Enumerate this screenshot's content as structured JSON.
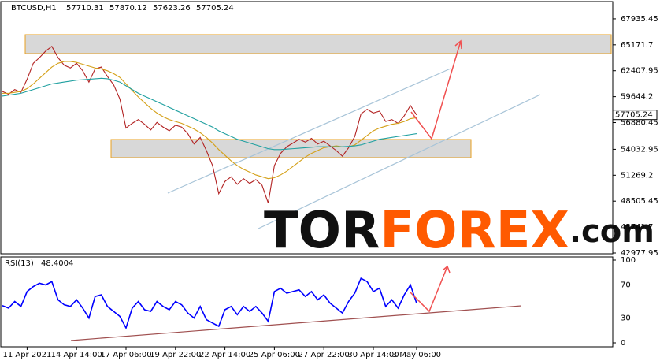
{
  "header": {
    "symbol": "BTCUSD,H1",
    "ohlc": [
      57710.31,
      57870.12,
      57623.26,
      57705.24
    ]
  },
  "current_price": 57705.24,
  "watermark": {
    "part1": "TOR",
    "part2": "FOREX",
    "part3": ".com"
  },
  "rsi_header": {
    "label": "RSI(13)",
    "value": 48.4004
  },
  "chart_data": [
    {
      "type": "line",
      "ylim": [
        42894,
        69778
      ],
      "yticks": [
        67935.45,
        65171.7,
        62407.95,
        59644.2,
        56880.45,
        54032.95,
        51269.2,
        48505.45,
        45741.7,
        42977.95
      ],
      "series": [
        {
          "color": "#b22222",
          "values": [
            60200,
            59900,
            60400,
            60100,
            61500,
            63200,
            63800,
            64500,
            65000,
            63800,
            63000,
            62700,
            63200,
            62400,
            61200,
            62600,
            62800,
            61800,
            60900,
            59400,
            56300,
            56800,
            57200,
            56700,
            56100,
            56900,
            56400,
            56000,
            56600,
            56400,
            55700,
            54600,
            55300,
            53900,
            52300,
            49300,
            50600,
            51100,
            50300,
            50900,
            50400,
            50800,
            50200,
            48300,
            52300,
            53600,
            54300,
            54700,
            55100,
            54800,
            55200,
            54600,
            54900,
            54400,
            53900,
            53300,
            54200,
            55400,
            57800,
            58300,
            57900,
            58100,
            57000,
            57200,
            56800,
            57600,
            58700,
            57700
          ]
        },
        {
          "color": "#d4a017",
          "values": [
            60000,
            60000,
            60100,
            60200,
            60500,
            61000,
            61600,
            62200,
            62800,
            63200,
            63400,
            63400,
            63300,
            63100,
            62900,
            62700,
            62600,
            62400,
            62100,
            61700,
            61000,
            60300,
            59600,
            59000,
            58400,
            57900,
            57500,
            57200,
            57000,
            56800,
            56500,
            56200,
            55800,
            55300,
            54700,
            54000,
            53400,
            52800,
            52300,
            51900,
            51600,
            51300,
            51100,
            50900,
            51000,
            51300,
            51700,
            52200,
            52700,
            53200,
            53600,
            53900,
            54200,
            54300,
            54400,
            54300,
            54300,
            54500,
            55000,
            55500,
            56000,
            56300,
            56500,
            56700,
            56800,
            57000,
            57300,
            57400
          ]
        },
        {
          "color": "#20a0a0",
          "values": [
            59700,
            59800,
            59900,
            60000,
            60200,
            60400,
            60600,
            60800,
            61000,
            61100,
            61200,
            61300,
            61400,
            61450,
            61500,
            61550,
            61600,
            61550,
            61400,
            61200,
            60800,
            60400,
            60000,
            59700,
            59400,
            59100,
            58800,
            58500,
            58200,
            57900,
            57600,
            57300,
            57000,
            56700,
            56400,
            56000,
            55700,
            55400,
            55100,
            54900,
            54700,
            54500,
            54300,
            54100,
            54000,
            54000,
            54050,
            54100,
            54150,
            54200,
            54250,
            54300,
            54300,
            54300,
            54300,
            54300,
            54350,
            54400,
            54500,
            54700,
            54900,
            55100,
            55200,
            55300,
            55400,
            55500,
            55600,
            55700
          ]
        }
      ]
    },
    {
      "type": "line",
      "ylim": [
        0,
        100
      ],
      "yticks": [
        100,
        70,
        30,
        0
      ],
      "categories": [
        null,
        null,
        null,
        null,
        "11 Apr 2021",
        null,
        null,
        null,
        null,
        null,
        null,
        null,
        "14 Apr 14:00",
        null,
        null,
        null,
        null,
        null,
        null,
        null,
        "17 Apr 06:00",
        null,
        null,
        null,
        null,
        null,
        null,
        null,
        "19 Apr 22:00",
        null,
        null,
        null,
        null,
        null,
        null,
        null,
        "22 Apr 14:00",
        null,
        null,
        null,
        null,
        null,
        null,
        null,
        "25 Apr 06:00",
        null,
        null,
        null,
        null,
        null,
        null,
        null,
        "27 Apr 22:00",
        null,
        null,
        null,
        null,
        null,
        null,
        null,
        "30 Apr 14:00",
        null,
        null,
        null,
        null,
        null,
        null,
        "3 May 06:00"
      ],
      "series": [
        {
          "color": "#0000ff",
          "values": [
            45,
            42,
            50,
            44,
            62,
            68,
            72,
            70,
            74,
            52,
            46,
            44,
            52,
            42,
            30,
            56,
            58,
            44,
            38,
            32,
            18,
            42,
            50,
            40,
            38,
            50,
            44,
            40,
            50,
            46,
            36,
            30,
            44,
            28,
            24,
            20,
            40,
            44,
            34,
            44,
            38,
            44,
            36,
            26,
            62,
            66,
            60,
            62,
            64,
            56,
            62,
            52,
            58,
            48,
            42,
            36,
            50,
            60,
            78,
            74,
            62,
            66,
            44,
            52,
            42,
            58,
            70,
            48
          ]
        }
      ]
    }
  ]
}
